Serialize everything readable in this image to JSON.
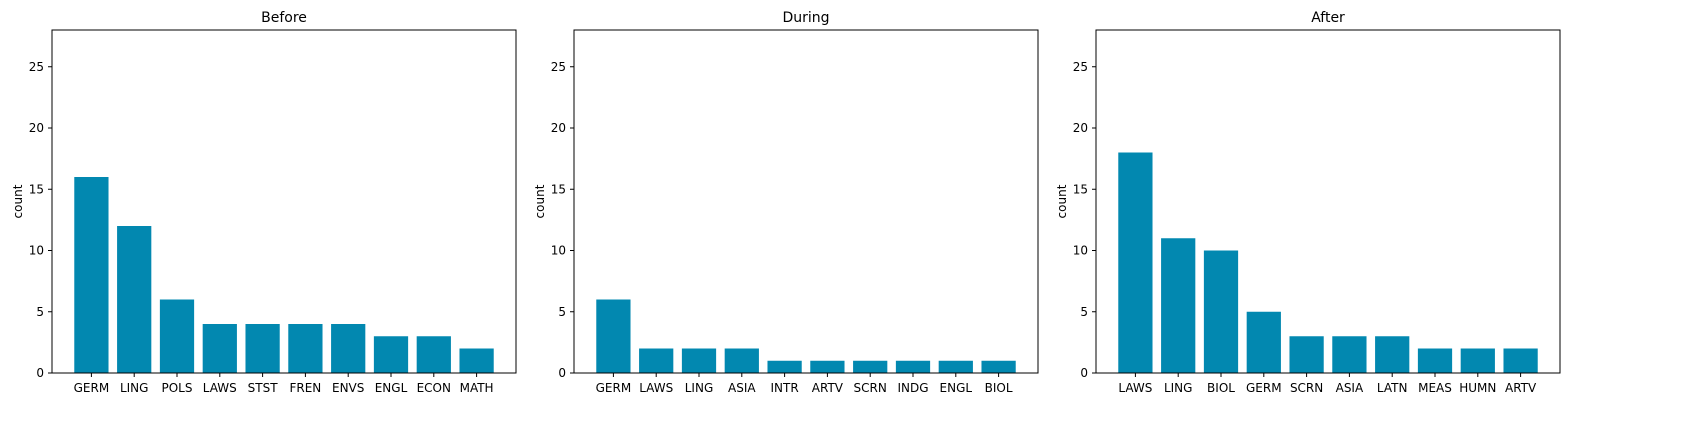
{
  "chart_data": [
    {
      "type": "bar",
      "title": "Before",
      "xlabel": "",
      "ylabel": "count",
      "ylim": [
        0,
        28
      ],
      "yticks": [
        0,
        5,
        10,
        15,
        20,
        25
      ],
      "categories": [
        "GERM",
        "LING",
        "POLS",
        "LAWS",
        "STST",
        "FREN",
        "ENVS",
        "ENGL",
        "ECON",
        "MATH"
      ],
      "values": [
        16,
        12,
        6,
        4,
        4,
        4,
        4,
        3,
        3,
        2
      ],
      "color": "#0288b0",
      "grid": false,
      "legend": false
    },
    {
      "type": "bar",
      "title": "During",
      "xlabel": "",
      "ylabel": "count",
      "ylim": [
        0,
        28
      ],
      "yticks": [
        0,
        5,
        10,
        15,
        20,
        25
      ],
      "categories": [
        "GERM",
        "LAWS",
        "LING",
        "ASIA",
        "INTR",
        "ARTV",
        "SCRN",
        "INDG",
        "ENGL",
        "BIOL"
      ],
      "values": [
        6,
        2,
        2,
        2,
        1,
        1,
        1,
        1,
        1,
        1
      ],
      "color": "#0288b0",
      "grid": false,
      "legend": false
    },
    {
      "type": "bar",
      "title": "After",
      "xlabel": "",
      "ylabel": "count",
      "ylim": [
        0,
        28
      ],
      "yticks": [
        0,
        5,
        10,
        15,
        20,
        25
      ],
      "categories": [
        "LAWS",
        "LING",
        "BIOL",
        "GERM",
        "SCRN",
        "ASIA",
        "LATN",
        "MEAS",
        "HUMN",
        "ARTV"
      ],
      "values": [
        18,
        11,
        10,
        5,
        3,
        3,
        3,
        2,
        2,
        2
      ],
      "color": "#0288b0",
      "grid": false,
      "legend": false
    }
  ]
}
